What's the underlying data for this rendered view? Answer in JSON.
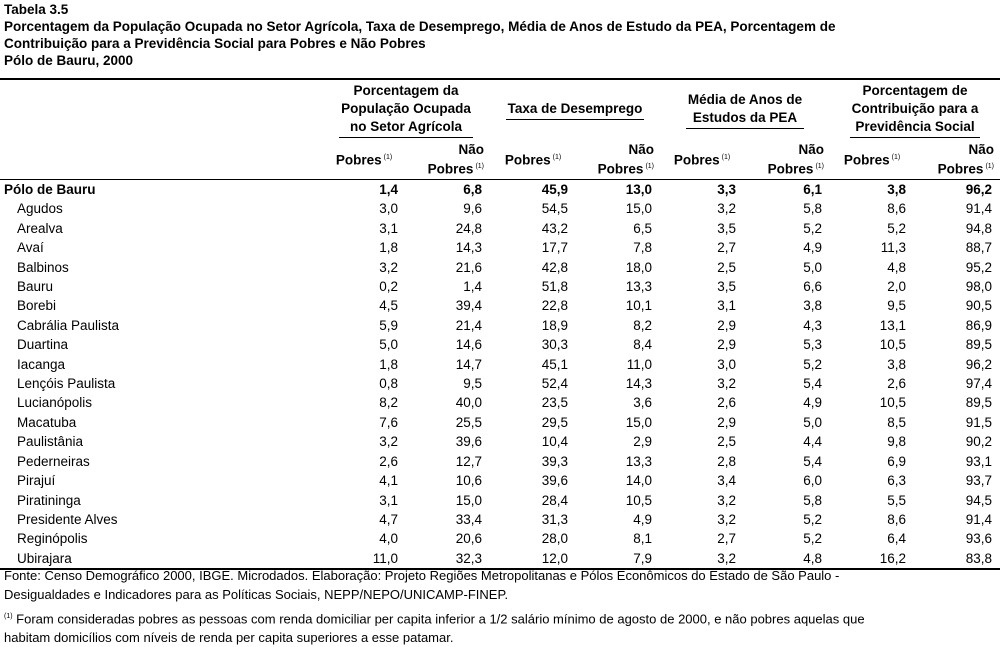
{
  "title": {
    "line1": "Tabela 3.5",
    "line2": "Porcentagem da População Ocupada no Setor Agrícola, Taxa de Desemprego, Média de Anos de Estudo da PEA, Porcentagem de",
    "line3": "Contribuição para a Previdência Social para Pobres e Não Pobres",
    "line4": "Pólo de Bauru, 2000"
  },
  "headers": {
    "groups": [
      {
        "line1": "Porcentagem da",
        "line2": "População Ocupada",
        "line3": "no Setor Agrícola"
      },
      {
        "line1": "Taxa de Desemprego",
        "line2": "",
        "line3": ""
      },
      {
        "line1": "Média de Anos de",
        "line2": "Estudos da PEA",
        "line3": ""
      },
      {
        "line1": "Porcentagem de",
        "line2": "Contribuição para a",
        "line3": "Previdência Social"
      }
    ],
    "pobres": "Pobres",
    "nao": "Não",
    "nao_pobres": "Pobres",
    "note_mark": "(1)"
  },
  "rows": [
    {
      "name": "Pólo de Bauru",
      "v": [
        "1,4",
        "6,8",
        "45,9",
        "13,0",
        "3,3",
        "6,1",
        "3,8",
        "96,2"
      ]
    },
    {
      "name": "Agudos",
      "v": [
        "3,0",
        "9,6",
        "54,5",
        "15,0",
        "3,2",
        "5,8",
        "8,6",
        "91,4"
      ]
    },
    {
      "name": "Arealva",
      "v": [
        "3,1",
        "24,8",
        "43,2",
        "6,5",
        "3,5",
        "5,2",
        "5,2",
        "94,8"
      ]
    },
    {
      "name": "Avaí",
      "v": [
        "1,8",
        "14,3",
        "17,7",
        "7,8",
        "2,7",
        "4,9",
        "11,3",
        "88,7"
      ]
    },
    {
      "name": "Balbinos",
      "v": [
        "3,2",
        "21,6",
        "42,8",
        "18,0",
        "2,5",
        "5,0",
        "4,8",
        "95,2"
      ]
    },
    {
      "name": "Bauru",
      "v": [
        "0,2",
        "1,4",
        "51,8",
        "13,3",
        "3,5",
        "6,6",
        "2,0",
        "98,0"
      ]
    },
    {
      "name": "Borebi",
      "v": [
        "4,5",
        "39,4",
        "22,8",
        "10,1",
        "3,1",
        "3,8",
        "9,5",
        "90,5"
      ]
    },
    {
      "name": "Cabrália Paulista",
      "v": [
        "5,9",
        "21,4",
        "18,9",
        "8,2",
        "2,9",
        "4,3",
        "13,1",
        "86,9"
      ]
    },
    {
      "name": "Duartina",
      "v": [
        "5,0",
        "14,6",
        "30,3",
        "8,4",
        "2,9",
        "5,3",
        "10,5",
        "89,5"
      ]
    },
    {
      "name": "Iacanga",
      "v": [
        "1,8",
        "14,7",
        "45,1",
        "11,0",
        "3,0",
        "5,2",
        "3,8",
        "96,2"
      ]
    },
    {
      "name": "Lençóis Paulista",
      "v": [
        "0,8",
        "9,5",
        "52,4",
        "14,3",
        "3,2",
        "5,4",
        "2,6",
        "97,4"
      ]
    },
    {
      "name": "Lucianópolis",
      "v": [
        "8,2",
        "40,0",
        "23,5",
        "3,6",
        "2,6",
        "4,9",
        "10,5",
        "89,5"
      ]
    },
    {
      "name": "Macatuba",
      "v": [
        "7,6",
        "25,5",
        "29,5",
        "15,0",
        "2,9",
        "5,0",
        "8,5",
        "91,5"
      ]
    },
    {
      "name": "Paulistânia",
      "v": [
        "3,2",
        "39,6",
        "10,4",
        "2,9",
        "2,5",
        "4,4",
        "9,8",
        "90,2"
      ]
    },
    {
      "name": "Pederneiras",
      "v": [
        "2,6",
        "12,7",
        "39,3",
        "13,3",
        "2,8",
        "5,4",
        "6,9",
        "93,1"
      ]
    },
    {
      "name": "Pirajuí",
      "v": [
        "4,1",
        "10,6",
        "39,6",
        "14,0",
        "3,4",
        "6,0",
        "6,3",
        "93,7"
      ]
    },
    {
      "name": "Piratininga",
      "v": [
        "3,1",
        "15,0",
        "28,4",
        "10,5",
        "3,2",
        "5,8",
        "5,5",
        "94,5"
      ]
    },
    {
      "name": "Presidente Alves",
      "v": [
        "4,7",
        "33,4",
        "31,3",
        "4,9",
        "3,2",
        "5,2",
        "8,6",
        "91,4"
      ]
    },
    {
      "name": "Reginópolis",
      "v": [
        "4,0",
        "20,6",
        "28,0",
        "8,1",
        "2,7",
        "5,2",
        "6,4",
        "93,6"
      ]
    },
    {
      "name": "Ubirajara",
      "v": [
        "11,0",
        "32,3",
        "12,0",
        "7,9",
        "3,2",
        "4,8",
        "16,2",
        "83,8"
      ]
    }
  ],
  "footer": {
    "source_line1": "Fonte: Censo Demográfico 2000, IBGE. Microdados. Elaboração: Projeto Regiões Metropolitanas e Pólos Econômicos do Estado de São Paulo -",
    "source_line2": "Desigualdades e Indicadores para as Políticas Sociais, NEPP/NEPO/UNICAMP-FINEP.",
    "note_mark": "(1)",
    "note_line1": " Foram consideradas pobres as pessoas com renda domiciliar per capita inferior a 1/2 salário mínimo de agosto de 2000, e não pobres aquelas que",
    "note_line2": "habitam domicílios com níveis de renda per capita superiores a esse patamar."
  }
}
